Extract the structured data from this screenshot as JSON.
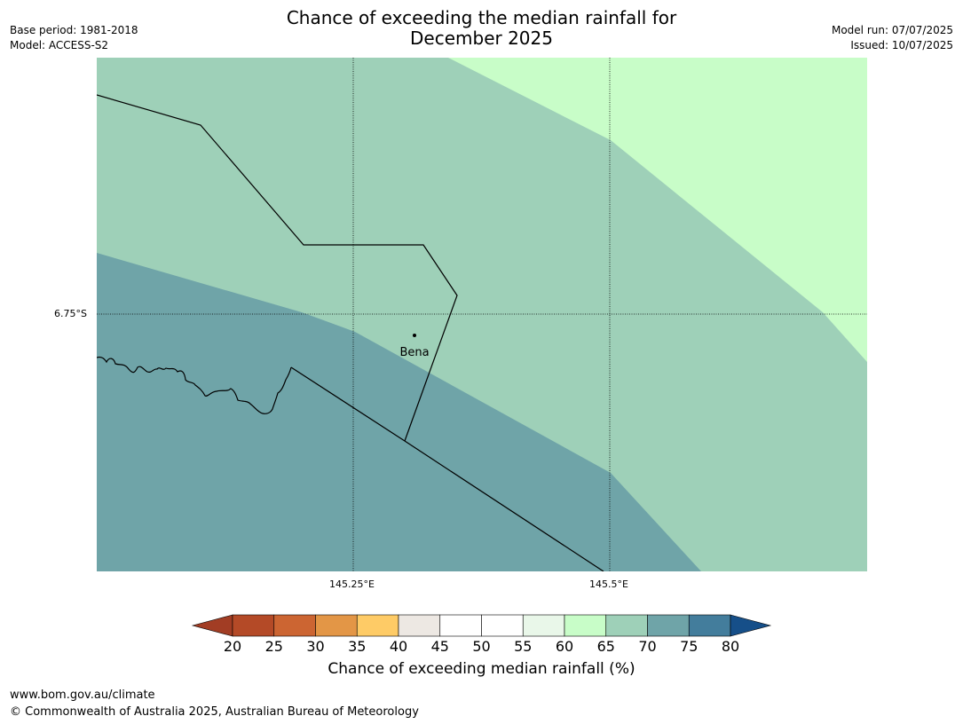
{
  "title": {
    "line1": "Chance of exceeding the median rainfall for",
    "line2": "December 2025"
  },
  "meta_left": {
    "base_period": "Base period: 1981-2018",
    "model": "Model: ACCESS-S2"
  },
  "meta_right": {
    "model_run": "Model run: 07/07/2025",
    "issued": "Issued: 10/07/2025"
  },
  "map": {
    "place_label": "Bena",
    "lat_label": "6.75°S",
    "lon_labels": [
      "145.25°E",
      "145.5°E"
    ],
    "category_colors": {
      "55-60": "#e9f7e9",
      "60-65": "#c8fdc8",
      "65-70": "#9ed0b8",
      "70-75": "#6fa4a8"
    }
  },
  "colorbar": {
    "title": "Chance of exceeding median rainfall (%)",
    "ticks": [
      "20",
      "25",
      "30",
      "35",
      "40",
      "45",
      "50",
      "55",
      "60",
      "65",
      "70",
      "75",
      "80"
    ],
    "colors": [
      "#a23d24",
      "#b44a27",
      "#cc6532",
      "#e39646",
      "#fecb66",
      "#ede8e3",
      "#ffffff",
      "#ffffff",
      "#e9f7e9",
      "#c8fdc8",
      "#9ed0b8",
      "#6fa4a8",
      "#437d9c",
      "#164f89"
    ]
  },
  "footer": {
    "url": "www.bom.gov.au/climate",
    "copyright": "© Commonwealth of Australia 2025, Australian Bureau of Meteorology"
  }
}
